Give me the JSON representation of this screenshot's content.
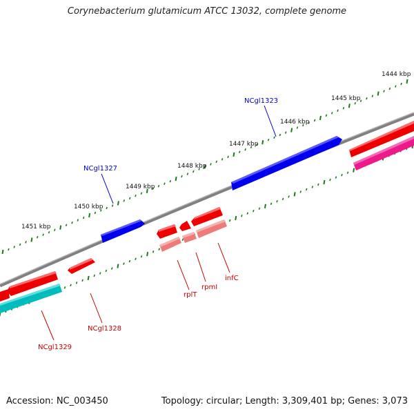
{
  "title": "Corynebacterium glutamicum ATCC 13032, complete genome",
  "footer": {
    "accession": "Accession: NC_003450",
    "topology": "Topology: circular; Length: 3,309,401 bp; Genes: 3,073"
  },
  "ticks": [
    "1444 kbp",
    "1445 kbp",
    "1446 kbp",
    "1447 kbp",
    "1448 kbp",
    "1449 kbp",
    "1450 kbp",
    "1451 kbp"
  ],
  "genes": {
    "forward": [
      {
        "name": "NCgl1323",
        "label": "NCgl1323",
        "color": "#0000ee"
      },
      {
        "name": "NCgl1327",
        "label": "NCgl1327",
        "color": "#0000ee"
      }
    ],
    "reverse": [
      {
        "name": "rplT",
        "label": "rplT",
        "color": "#dd0000"
      },
      {
        "name": "rpmI",
        "label": "rpmI",
        "color": "#dd0000"
      },
      {
        "name": "infC",
        "label": "infC",
        "color": "#dd0000"
      },
      {
        "name": "NCgl1328",
        "label": "NCgl1328",
        "color": "#dd0000"
      },
      {
        "name": "NCgl1329",
        "label": "NCgl1329",
        "color": "#dd0000"
      }
    ]
  },
  "colors": {
    "backbone": "#808080",
    "tick": "#1a7a1a",
    "forward_gene": "#0000ee",
    "reverse_gene": "#ee0000",
    "rna_gene": "#ee7a7a",
    "cds_cyan": "#00bcbc",
    "cds_magenta": "#ee1a8c"
  }
}
